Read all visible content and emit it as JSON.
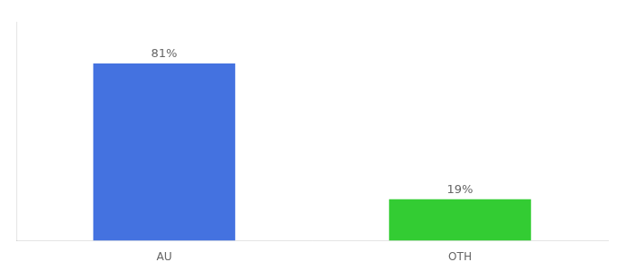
{
  "chart_data": {
    "type": "bar",
    "categories": [
      "AU",
      "OTH"
    ],
    "values": [
      81,
      19
    ],
    "value_labels": [
      "81%",
      "19%"
    ],
    "colors": [
      "#4472e0",
      "#33cc33"
    ],
    "ylim": [
      0,
      100
    ],
    "grid": false,
    "data_labels": true,
    "tick_labels": "x"
  }
}
